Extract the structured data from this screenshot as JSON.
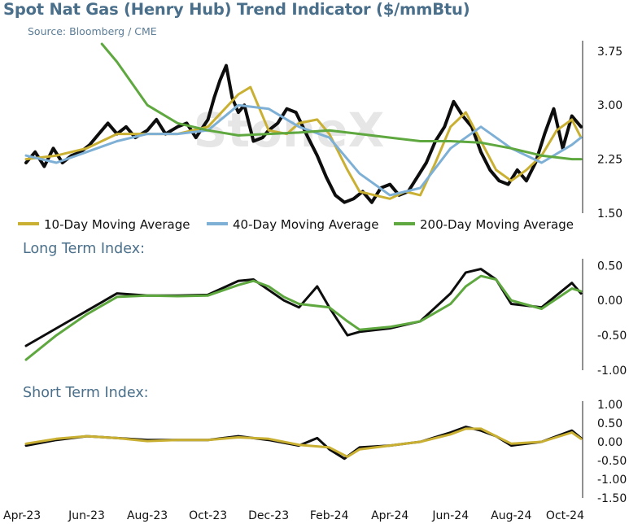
{
  "title": "Spot Nat Gas (Henry Hub) Trend Indicator ($/mmBtu)",
  "source": "Source: Bloomberg / CME",
  "watermark": "StoneX",
  "colors": {
    "price": "#0d0d0d",
    "ma10": "#c9b033",
    "ma40": "#7eb0d6",
    "ma200": "#5ea83f",
    "heading": "#4a6f8a",
    "axis": "#222222"
  },
  "chart_data": [
    {
      "type": "line",
      "panel_label": "",
      "x_ticks": [
        "Apr-23",
        "Jun-23",
        "Aug-23",
        "Oct-23",
        "Dec-23",
        "Feb-24",
        "Apr-24",
        "Jun-24",
        "Aug-24",
        "Oct-24"
      ],
      "y_ticks": [
        "1.50",
        "2.25",
        "3.00",
        "3.75"
      ],
      "ylim": [
        1.5,
        3.85
      ],
      "legend": [
        "10-Day Moving Average",
        "40-Day Moving Average",
        "200-Day Moving Average"
      ],
      "legend_position": "bottom",
      "series": [
        {
          "name": "",
          "color": "price",
          "width": 4,
          "x": [
            0,
            0.3,
            0.6,
            0.9,
            1.2,
            1.5,
            1.8,
            2.1,
            2.4,
            2.7,
            3.0,
            3.3,
            3.6,
            4.0,
            4.3,
            4.6,
            5.0,
            5.3,
            5.6,
            6.0,
            6.2,
            6.4,
            6.6,
            6.8,
            7.0,
            7.2,
            7.5,
            7.8,
            8.0,
            8.3,
            8.6,
            8.9,
            9.3,
            9.6,
            9.9,
            10.2,
            10.5,
            10.8,
            11.1,
            11.4,
            11.7,
            12.0,
            12.3,
            12.6,
            12.9,
            13.2,
            13.5,
            13.8,
            14.1,
            14.4,
            14.7,
            15.0,
            15.3,
            15.6,
            15.9,
            16.2,
            16.5,
            16.8,
            17.1,
            17.4,
            17.7,
            18.0,
            18.3
          ],
          "y": [
            2.2,
            2.35,
            2.15,
            2.4,
            2.2,
            2.3,
            2.35,
            2.45,
            2.6,
            2.75,
            2.6,
            2.7,
            2.55,
            2.65,
            2.8,
            2.6,
            2.7,
            2.75,
            2.55,
            2.8,
            3.1,
            3.35,
            3.55,
            3.1,
            2.9,
            3.0,
            2.5,
            2.55,
            2.65,
            2.75,
            2.95,
            2.9,
            2.55,
            2.3,
            2.0,
            1.75,
            1.65,
            1.7,
            1.8,
            1.65,
            1.85,
            1.9,
            1.75,
            1.8,
            2.0,
            2.2,
            2.5,
            2.7,
            3.05,
            2.85,
            2.7,
            2.35,
            2.1,
            1.95,
            1.9,
            2.1,
            1.95,
            2.2,
            2.6,
            2.95,
            2.4,
            2.85,
            2.7
          ]
        },
        {
          "name": "10-Day Moving Average",
          "color": "ma10",
          "width": 3,
          "x": [
            0,
            1,
            2,
            3,
            4,
            5,
            6,
            7,
            7.4,
            8,
            8.6,
            9,
            9.6,
            10,
            10.6,
            11,
            11.5,
            12,
            12.5,
            13,
            13.5,
            14,
            14.5,
            15,
            15.5,
            16,
            16.5,
            17,
            17.5,
            18,
            18.3
          ],
          "y": [
            2.25,
            2.3,
            2.4,
            2.6,
            2.6,
            2.6,
            2.7,
            3.15,
            3.25,
            2.65,
            2.6,
            2.75,
            2.8,
            2.6,
            2.1,
            1.8,
            1.75,
            1.7,
            1.8,
            1.75,
            2.2,
            2.7,
            2.9,
            2.5,
            2.1,
            1.95,
            2.1,
            2.3,
            2.65,
            2.8,
            2.55
          ]
        },
        {
          "name": "40-Day Moving Average",
          "color": "ma40",
          "width": 3,
          "x": [
            0,
            1,
            2,
            3,
            4,
            5,
            6,
            7,
            8,
            9,
            10,
            11,
            12,
            13,
            14,
            15,
            16,
            17,
            18,
            18.3
          ],
          "y": [
            2.3,
            2.2,
            2.35,
            2.5,
            2.6,
            2.6,
            2.65,
            3.0,
            2.95,
            2.7,
            2.55,
            2.05,
            1.75,
            1.85,
            2.4,
            2.7,
            2.4,
            2.2,
            2.45,
            2.55
          ]
        },
        {
          "name": "200-Day Moving Average",
          "color": "ma200",
          "width": 3,
          "x": [
            2.5,
            3,
            4,
            5,
            6,
            7,
            8,
            9,
            10,
            11,
            12,
            13,
            14,
            15,
            16,
            17,
            18,
            18.3
          ],
          "y": [
            3.85,
            3.6,
            3.0,
            2.75,
            2.65,
            2.58,
            2.6,
            2.62,
            2.65,
            2.6,
            2.55,
            2.5,
            2.5,
            2.48,
            2.4,
            2.3,
            2.25,
            2.25
          ]
        }
      ]
    },
    {
      "type": "line",
      "panel_label": "Long Term Index:",
      "y_ticks": [
        "0.50",
        "0.00",
        "-0.50",
        "-1.00"
      ],
      "ylim": [
        -1.0,
        0.55
      ],
      "series": [
        {
          "name": "",
          "color": "price",
          "width": 3,
          "x": [
            0,
            1,
            2,
            3,
            4,
            5,
            6,
            7,
            7.5,
            8,
            8.5,
            9,
            9.6,
            10,
            10.6,
            11,
            12,
            13,
            14,
            14.5,
            15,
            15.5,
            16,
            17,
            18,
            18.3
          ],
          "y": [
            -0.65,
            -0.4,
            -0.15,
            0.1,
            0.07,
            0.07,
            0.08,
            0.28,
            0.3,
            0.15,
            0.0,
            -0.1,
            0.2,
            -0.1,
            -0.5,
            -0.45,
            -0.4,
            -0.3,
            0.1,
            0.4,
            0.45,
            0.3,
            -0.05,
            -0.1,
            0.25,
            0.1
          ]
        },
        {
          "name": "",
          "color": "ma200",
          "width": 3,
          "x": [
            0,
            1,
            2,
            3,
            4,
            5,
            6,
            7,
            7.5,
            8,
            8.5,
            9,
            10,
            10.6,
            11,
            11.5,
            12,
            13,
            14,
            14.5,
            15,
            15.5,
            16,
            17,
            18,
            18.3
          ],
          "y": [
            -0.85,
            -0.5,
            -0.2,
            0.05,
            0.07,
            0.06,
            0.07,
            0.22,
            0.28,
            0.2,
            0.05,
            -0.05,
            -0.1,
            -0.3,
            -0.42,
            -0.4,
            -0.38,
            -0.3,
            -0.05,
            0.2,
            0.35,
            0.3,
            0.0,
            -0.12,
            0.17,
            0.13
          ]
        }
      ]
    },
    {
      "type": "line",
      "panel_label": "Short Term Index:",
      "y_ticks": [
        "1.00",
        "0.50",
        "0.00",
        "-0.50",
        "-1.00",
        "-1.50"
      ],
      "ylim": [
        -1.5,
        1.0
      ],
      "series": [
        {
          "name": "",
          "color": "price",
          "width": 3,
          "x": [
            0,
            1,
            2,
            3,
            4,
            5,
            6,
            7,
            8,
            9,
            9.6,
            10,
            10.5,
            11,
            12,
            13,
            14,
            14.5,
            15,
            15.5,
            16,
            17,
            18,
            18.3
          ],
          "y": [
            -0.1,
            0.05,
            0.15,
            0.1,
            0.05,
            0.05,
            0.05,
            0.15,
            0.05,
            -0.1,
            0.1,
            -0.2,
            -0.45,
            -0.15,
            -0.1,
            0.0,
            0.25,
            0.4,
            0.3,
            0.15,
            -0.1,
            0.0,
            0.3,
            0.1
          ]
        },
        {
          "name": "",
          "color": "ma10",
          "width": 3,
          "x": [
            0,
            1,
            2,
            3,
            4,
            5,
            6,
            7,
            8,
            9,
            10,
            10.6,
            11,
            12,
            13,
            14,
            14.5,
            15,
            15.5,
            16,
            17,
            18,
            18.3
          ],
          "y": [
            -0.05,
            0.08,
            0.15,
            0.1,
            0.02,
            0.05,
            0.05,
            0.12,
            0.08,
            -0.08,
            -0.15,
            -0.4,
            -0.2,
            -0.1,
            0.0,
            0.2,
            0.35,
            0.35,
            0.15,
            -0.05,
            0.0,
            0.25,
            0.08
          ]
        }
      ]
    }
  ]
}
